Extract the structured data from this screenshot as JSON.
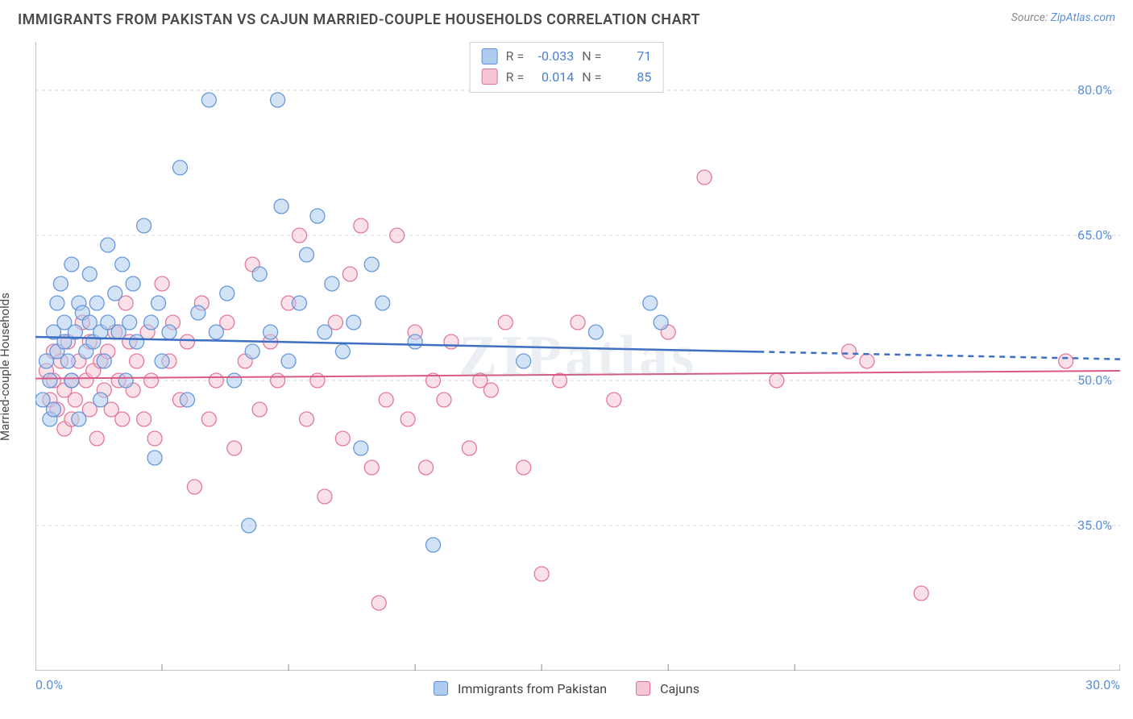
{
  "title": "IMMIGRANTS FROM PAKISTAN VS CAJUN MARRIED-COUPLE HOUSEHOLDS CORRELATION CHART",
  "source_label": "Source:",
  "source_name": "ZipAtlas.com",
  "ylabel": "Married-couple Households",
  "watermark": "ZIPatlas",
  "chart": {
    "type": "scatter",
    "xlim": [
      0,
      30
    ],
    "ylim": [
      20,
      85
    ],
    "xticks": [
      0,
      3.5,
      7,
      10.5,
      14,
      17.5,
      21,
      30
    ],
    "xtick_labels_shown": {
      "0": "0.0%",
      "30": "30.0%"
    },
    "yticks": [
      35.0,
      50.0,
      65.0,
      80.0
    ],
    "ytick_labels": [
      "35.0%",
      "50.0%",
      "65.0%",
      "80.0%"
    ],
    "grid_color": "#d9d9d9",
    "grid_dash": "4,4",
    "axis_color": "#888888",
    "background": "#ffffff",
    "marker_radius": 9,
    "marker_opacity": 0.55,
    "marker_stroke_width": 1.3,
    "series": [
      {
        "name": "Immigrants from Pakistan",
        "fill": "#aeccee",
        "stroke": "#5b8fd6",
        "legend_fill": "#aeccee",
        "legend_stroke": "#5b8fd6",
        "R": "-0.033",
        "N": "71",
        "trend": {
          "color": "#3d6fc3",
          "width": 2.5,
          "y_start": 54.5,
          "y_end": 52.2,
          "x_solid_end": 20,
          "dash_after": true
        },
        "points": [
          [
            0.2,
            48
          ],
          [
            0.3,
            52
          ],
          [
            0.4,
            50
          ],
          [
            0.4,
            46
          ],
          [
            0.5,
            55
          ],
          [
            0.5,
            47
          ],
          [
            0.6,
            53
          ],
          [
            0.6,
            58
          ],
          [
            0.7,
            60
          ],
          [
            0.8,
            56
          ],
          [
            0.8,
            54
          ],
          [
            0.9,
            52
          ],
          [
            1.0,
            62
          ],
          [
            1.0,
            50
          ],
          [
            1.1,
            55
          ],
          [
            1.2,
            58
          ],
          [
            1.2,
            46
          ],
          [
            1.3,
            57
          ],
          [
            1.4,
            53
          ],
          [
            1.5,
            61
          ],
          [
            1.5,
            56
          ],
          [
            1.6,
            54
          ],
          [
            1.7,
            58
          ],
          [
            1.8,
            55
          ],
          [
            1.8,
            48
          ],
          [
            1.9,
            52
          ],
          [
            2.0,
            64
          ],
          [
            2.0,
            56
          ],
          [
            2.2,
            59
          ],
          [
            2.3,
            55
          ],
          [
            2.4,
            62
          ],
          [
            2.5,
            50
          ],
          [
            2.6,
            56
          ],
          [
            2.7,
            60
          ],
          [
            2.8,
            54
          ],
          [
            3.0,
            66
          ],
          [
            3.2,
            56
          ],
          [
            3.3,
            42
          ],
          [
            3.4,
            58
          ],
          [
            3.5,
            52
          ],
          [
            3.7,
            55
          ],
          [
            4.0,
            72
          ],
          [
            4.2,
            48
          ],
          [
            4.5,
            57
          ],
          [
            4.8,
            79
          ],
          [
            5.0,
            55
          ],
          [
            5.3,
            59
          ],
          [
            5.5,
            50
          ],
          [
            5.9,
            35
          ],
          [
            6.0,
            53
          ],
          [
            6.2,
            61
          ],
          [
            6.5,
            55
          ],
          [
            6.7,
            79
          ],
          [
            6.8,
            68
          ],
          [
            7.0,
            52
          ],
          [
            7.3,
            58
          ],
          [
            7.5,
            63
          ],
          [
            7.8,
            67
          ],
          [
            8.0,
            55
          ],
          [
            8.2,
            60
          ],
          [
            8.5,
            53
          ],
          [
            8.8,
            56
          ],
          [
            9.0,
            43
          ],
          [
            9.3,
            62
          ],
          [
            9.6,
            58
          ],
          [
            10.5,
            54
          ],
          [
            11.0,
            33
          ],
          [
            13.5,
            52
          ],
          [
            15.5,
            55
          ],
          [
            17.0,
            58
          ],
          [
            17.3,
            56
          ]
        ]
      },
      {
        "name": "Cajuns",
        "fill": "#f5c6d4",
        "stroke": "#e06e94",
        "legend_fill": "#f5c6d4",
        "legend_stroke": "#e06e94",
        "R": "0.014",
        "N": "85",
        "trend": {
          "color": "#d85a84",
          "width": 2,
          "y_start": 50.2,
          "y_end": 51.0,
          "x_solid_end": 30,
          "dash_after": false
        },
        "points": [
          [
            0.3,
            51
          ],
          [
            0.4,
            48
          ],
          [
            0.5,
            53
          ],
          [
            0.5,
            50
          ],
          [
            0.6,
            47
          ],
          [
            0.7,
            52
          ],
          [
            0.8,
            49
          ],
          [
            0.8,
            45
          ],
          [
            0.9,
            54
          ],
          [
            1.0,
            50
          ],
          [
            1.0,
            46
          ],
          [
            1.1,
            48
          ],
          [
            1.2,
            52
          ],
          [
            1.3,
            56
          ],
          [
            1.4,
            50
          ],
          [
            1.5,
            47
          ],
          [
            1.5,
            54
          ],
          [
            1.6,
            51
          ],
          [
            1.7,
            44
          ],
          [
            1.8,
            52
          ],
          [
            1.9,
            49
          ],
          [
            2.0,
            53
          ],
          [
            2.1,
            47
          ],
          [
            2.2,
            55
          ],
          [
            2.3,
            50
          ],
          [
            2.4,
            46
          ],
          [
            2.5,
            58
          ],
          [
            2.6,
            54
          ],
          [
            2.7,
            49
          ],
          [
            2.8,
            52
          ],
          [
            3.0,
            46
          ],
          [
            3.1,
            55
          ],
          [
            3.2,
            50
          ],
          [
            3.3,
            44
          ],
          [
            3.5,
            60
          ],
          [
            3.7,
            52
          ],
          [
            3.8,
            56
          ],
          [
            4.0,
            48
          ],
          [
            4.2,
            54
          ],
          [
            4.4,
            39
          ],
          [
            4.6,
            58
          ],
          [
            4.8,
            46
          ],
          [
            5.0,
            50
          ],
          [
            5.3,
            56
          ],
          [
            5.5,
            43
          ],
          [
            5.8,
            52
          ],
          [
            6.0,
            62
          ],
          [
            6.2,
            47
          ],
          [
            6.5,
            54
          ],
          [
            6.7,
            50
          ],
          [
            7.0,
            58
          ],
          [
            7.3,
            65
          ],
          [
            7.5,
            46
          ],
          [
            7.8,
            50
          ],
          [
            8.0,
            38
          ],
          [
            8.3,
            56
          ],
          [
            8.5,
            44
          ],
          [
            8.7,
            61
          ],
          [
            9.0,
            66
          ],
          [
            9.3,
            41
          ],
          [
            9.5,
            27
          ],
          [
            9.7,
            48
          ],
          [
            10.0,
            65
          ],
          [
            10.3,
            46
          ],
          [
            10.5,
            55
          ],
          [
            10.8,
            41
          ],
          [
            11.0,
            50
          ],
          [
            11.3,
            48
          ],
          [
            11.5,
            54
          ],
          [
            12.0,
            43
          ],
          [
            12.3,
            50
          ],
          [
            12.6,
            49
          ],
          [
            13.0,
            56
          ],
          [
            13.5,
            41
          ],
          [
            14.0,
            30
          ],
          [
            14.5,
            50
          ],
          [
            15.0,
            56
          ],
          [
            16.0,
            48
          ],
          [
            17.5,
            55
          ],
          [
            18.5,
            71
          ],
          [
            20.5,
            50
          ],
          [
            22.5,
            53
          ],
          [
            23.0,
            52
          ],
          [
            24.5,
            28
          ],
          [
            28.5,
            52
          ]
        ]
      }
    ]
  },
  "legend_labels": {
    "R": "R =",
    "N": "N ="
  }
}
